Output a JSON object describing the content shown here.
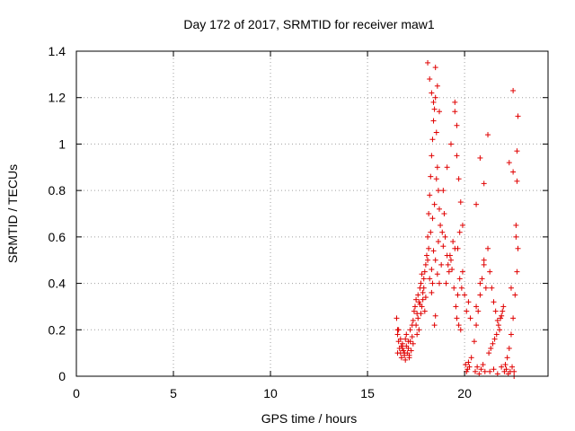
{
  "chart_data": {
    "type": "scatter",
    "title": "Day 172 of 2017, SRMTID for receiver maw1",
    "xlabel": "GPS time / hours",
    "ylabel": "SRMTID / TECUs",
    "xlim": [
      0,
      24.3
    ],
    "ylim": [
      0,
      1.4
    ],
    "x_ticks": [
      "0",
      "5",
      "10",
      "15",
      "20"
    ],
    "y_ticks": [
      "0",
      "0.2",
      "0.4",
      "0.6",
      "0.8",
      "1",
      "1.2",
      "1.4"
    ],
    "grid": true,
    "marker": "+",
    "series": [
      {
        "name": "maw1",
        "color": "#e00000",
        "x": [
          16.5,
          16.55,
          16.6,
          16.65,
          16.7,
          16.75,
          16.8,
          16.85,
          16.9,
          16.95,
          17.0,
          17.05,
          17.1,
          17.15,
          17.2,
          17.25,
          17.3,
          17.35,
          16.6,
          16.7,
          16.8,
          16.9,
          17.0,
          17.1,
          17.2,
          17.3,
          16.55,
          16.75,
          16.95,
          17.15,
          17.35,
          17.4,
          17.45,
          17.5,
          17.55,
          17.6,
          17.65,
          17.7,
          17.75,
          17.8,
          17.85,
          17.9,
          17.95,
          18.0,
          17.5,
          17.6,
          17.7,
          17.8,
          17.9,
          18.0,
          17.55,
          17.65,
          17.75,
          17.85,
          17.95,
          18.05,
          18.1,
          18.15,
          18.2,
          18.25,
          18.3,
          18.35,
          18.4,
          18.45,
          18.5,
          18.55,
          18.6,
          18.65,
          18.7,
          18.75,
          18.1,
          18.2,
          18.3,
          18.4,
          18.5,
          18.6,
          18.7,
          18.15,
          18.25,
          18.35,
          18.45,
          18.55,
          18.65,
          18.1,
          18.2,
          18.3,
          18.4,
          18.5,
          18.6,
          18.7,
          18.8,
          18.9,
          19.0,
          19.1,
          19.2,
          19.3,
          19.4,
          19.5,
          18.85,
          18.95,
          19.05,
          19.15,
          19.25,
          19.35,
          19.45,
          18.9,
          19.1,
          19.3,
          19.5,
          19.6,
          19.7,
          19.8,
          19.9,
          19.55,
          19.65,
          19.75,
          19.85,
          19.6,
          19.7,
          19.8,
          19.65,
          19.75,
          19.9,
          20.0,
          20.1,
          20.2,
          20.3,
          20.05,
          20.15,
          20.25,
          20.1,
          20.2,
          20.35,
          20.5,
          20.6,
          20.7,
          20.8,
          20.9,
          21.0,
          21.1,
          20.55,
          20.65,
          20.75,
          20.85,
          20.95,
          21.05,
          20.6,
          20.8,
          21.0,
          21.2,
          21.3,
          21.4,
          21.5,
          21.6,
          21.7,
          21.8,
          21.9,
          22.0,
          21.25,
          21.35,
          21.45,
          21.55,
          21.65,
          21.75,
          21.85,
          21.95,
          21.3,
          21.5,
          21.7,
          21.9,
          22.1,
          22.2,
          22.3,
          22.4,
          22.5,
          22.6,
          22.7,
          22.75,
          22.05,
          22.15,
          22.25,
          22.35,
          22.45,
          22.55,
          22.65,
          22.7,
          22.75,
          22.7,
          22.65,
          22.5,
          22.3,
          21.2,
          20.8,
          21.0,
          20.6,
          19.6,
          19.5,
          18.5,
          18.45,
          18.3,
          18.35,
          22.5,
          22.4,
          16.55,
          22.55
        ],
        "y": [
          0.25,
          0.18,
          0.15,
          0.12,
          0.1,
          0.08,
          0.14,
          0.11,
          0.09,
          0.07,
          0.13,
          0.1,
          0.12,
          0.08,
          0.15,
          0.11,
          0.17,
          0.14,
          0.2,
          0.16,
          0.12,
          0.1,
          0.18,
          0.15,
          0.2,
          0.22,
          0.1,
          0.13,
          0.16,
          0.09,
          0.24,
          0.28,
          0.3,
          0.33,
          0.27,
          0.35,
          0.32,
          0.38,
          0.4,
          0.3,
          0.36,
          0.42,
          0.28,
          0.34,
          0.22,
          0.25,
          0.31,
          0.44,
          0.38,
          0.48,
          0.18,
          0.2,
          0.27,
          0.33,
          0.45,
          0.52,
          0.6,
          0.7,
          0.78,
          0.86,
          0.95,
          1.02,
          1.1,
          1.15,
          1.2,
          1.05,
          0.9,
          0.8,
          0.72,
          0.65,
          1.35,
          1.28,
          1.22,
          1.18,
          1.33,
          1.25,
          1.14,
          0.55,
          0.62,
          0.68,
          0.74,
          0.85,
          0.58,
          0.5,
          0.42,
          0.46,
          0.54,
          0.5,
          0.44,
          0.4,
          0.48,
          0.56,
          0.6,
          0.52,
          0.45,
          0.5,
          0.58,
          0.55,
          0.62,
          0.7,
          0.4,
          0.48,
          0.52,
          0.46,
          0.38,
          0.8,
          0.9,
          1.0,
          1.14,
          0.95,
          0.85,
          0.75,
          0.65,
          0.3,
          0.35,
          0.42,
          0.38,
          0.25,
          0.22,
          0.2,
          0.55,
          0.62,
          0.45,
          0.35,
          0.28,
          0.32,
          0.25,
          0.05,
          0.03,
          0.04,
          0.02,
          0.06,
          0.08,
          0.15,
          0.22,
          0.28,
          0.35,
          0.42,
          0.5,
          0.38,
          0.02,
          0.04,
          0.01,
          0.03,
          0.05,
          0.02,
          0.3,
          0.4,
          0.48,
          0.55,
          0.45,
          0.38,
          0.32,
          0.28,
          0.24,
          0.2,
          0.26,
          0.3,
          0.1,
          0.12,
          0.14,
          0.16,
          0.18,
          0.22,
          0.25,
          0.28,
          0.02,
          0.03,
          0.01,
          0.04,
          0.05,
          0.08,
          0.12,
          0.18,
          0.25,
          0.35,
          0.45,
          0.55,
          0.02,
          0.03,
          0.01,
          0.02,
          0.04,
          0.02,
          0.6,
          0.84,
          1.12,
          0.97,
          0.65,
          0.88,
          0.92,
          1.04,
          0.94,
          0.83,
          0.74,
          1.08,
          1.18,
          0.26,
          0.22,
          0.36,
          0.4,
          1.23,
          0.38,
          0.2,
          0.0
        ]
      }
    ]
  }
}
